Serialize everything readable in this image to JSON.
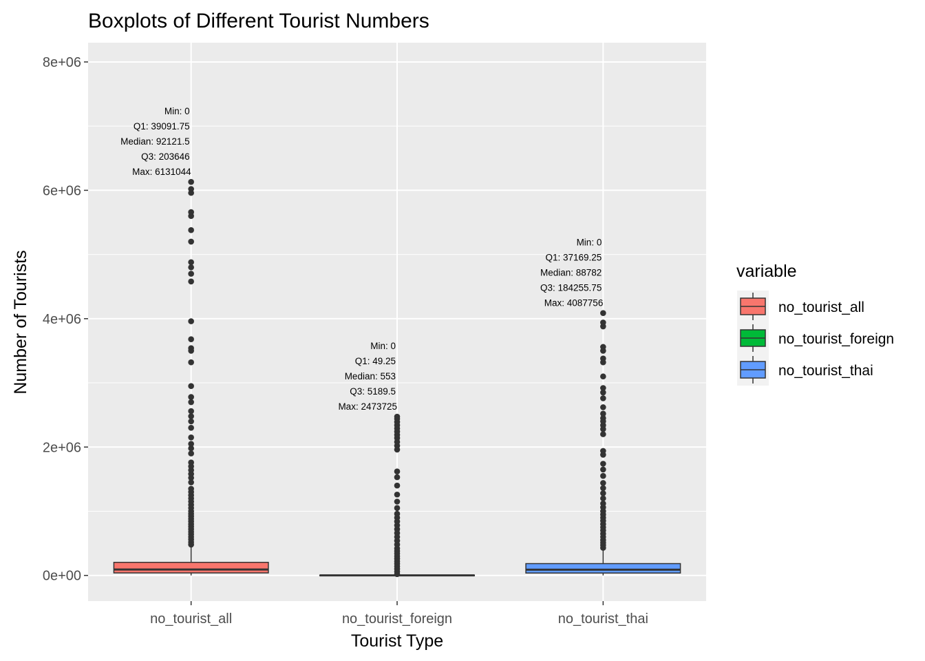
{
  "chart_data": {
    "type": "boxplot",
    "title": "Boxplots of Different Tourist Numbers",
    "xlabel": "Tourist Type",
    "ylabel": "Number of Tourists",
    "ylim": [
      -400000,
      8300000
    ],
    "yticks": [
      0,
      2000000,
      4000000,
      6000000,
      8000000
    ],
    "ytick_labels": [
      "0e+00",
      "2e+06",
      "4e+06",
      "6e+06",
      "8e+06"
    ],
    "categories": [
      "no_tourist_all",
      "no_tourist_foreign",
      "no_tourist_thai"
    ],
    "grid": true,
    "legend": {
      "title": "variable",
      "position": "right",
      "entries": [
        "no_tourist_all",
        "no_tourist_foreign",
        "no_tourist_thai"
      ]
    },
    "series": [
      {
        "name": "no_tourist_all",
        "color": "#F8766D",
        "min": 0,
        "q1": 39091.75,
        "median": 92121.5,
        "q3": 203646,
        "max": 6131044,
        "whisker_high": 450000,
        "outliers": [
          480000,
          520000,
          560000,
          600000,
          640000,
          680000,
          720000,
          760000,
          800000,
          840000,
          880000,
          920000,
          960000,
          1000000,
          1050000,
          1100000,
          1150000,
          1200000,
          1250000,
          1300000,
          1350000,
          1450000,
          1520000,
          1580000,
          1640000,
          1700000,
          1760000,
          1900000,
          1980000,
          2050000,
          2150000,
          2300000,
          2400000,
          2480000,
          2560000,
          2700000,
          2780000,
          2950000,
          3320000,
          3500000,
          3540000,
          3680000,
          3960000,
          4580000,
          4700000,
          4800000,
          4880000,
          5200000,
          5380000,
          5600000,
          5660000,
          5960000,
          6020000,
          6131044
        ],
        "annotations": [
          "Min: 0",
          "Q1: 39091.75",
          "Median: 92121.5",
          "Q3: 203646",
          "Max: 6131044"
        ]
      },
      {
        "name": "no_tourist_foreign",
        "color": "#00BA38",
        "min": 0,
        "q1": 49.25,
        "median": 553,
        "q3": 5189.5,
        "max": 2473725,
        "whisker_high": 12000,
        "outliers": [
          20000,
          60000,
          100000,
          140000,
          180000,
          220000,
          260000,
          300000,
          340000,
          380000,
          420000,
          480000,
          540000,
          600000,
          660000,
          720000,
          780000,
          840000,
          900000,
          960000,
          1050000,
          1150000,
          1260000,
          1400000,
          1530000,
          1620000,
          1960000,
          2020000,
          2080000,
          2140000,
          2190000,
          2240000,
          2290000,
          2340000,
          2390000,
          2440000,
          2473725
        ],
        "annotations": [
          "Min: 0",
          "Q1: 49.25",
          "Median: 553",
          "Q3: 5189.5",
          "Max: 2473725"
        ]
      },
      {
        "name": "no_tourist_thai",
        "color": "#619CFF",
        "min": 0,
        "q1": 37169.25,
        "median": 88782,
        "q3": 184255.75,
        "max": 4087756,
        "whisker high": 400000,
        "whisker_high": 400000,
        "outliers": [
          430000,
          470000,
          510000,
          550000,
          600000,
          650000,
          700000,
          750000,
          800000,
          850000,
          900000,
          950000,
          1000000,
          1060000,
          1120000,
          1200000,
          1280000,
          1360000,
          1440000,
          1550000,
          1650000,
          1740000,
          1880000,
          1940000,
          2200000,
          2280000,
          2340000,
          2400000,
          2450000,
          2520000,
          2620000,
          2760000,
          2850000,
          2920000,
          3100000,
          3320000,
          3380000,
          3500000,
          3560000,
          3880000,
          3940000,
          4087756
        ],
        "annotations": [
          "Min: 0",
          "Q1: 37169.25",
          "Median: 88782",
          "Q3: 184255.75",
          "Max: 4087756"
        ]
      }
    ]
  }
}
